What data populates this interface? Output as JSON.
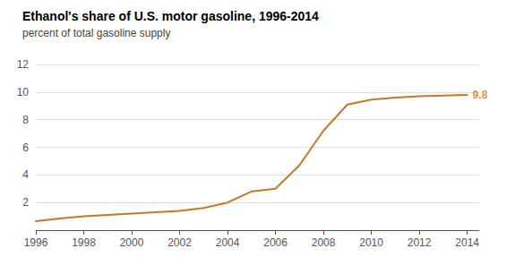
{
  "chart_data": {
    "type": "line",
    "title": "Ethanol's share of U.S. motor gasoline, 1996-2014",
    "subtitle": "percent of total gasoline supply",
    "x": [
      1996,
      1997,
      1998,
      1999,
      2000,
      2001,
      2002,
      2003,
      2004,
      2005,
      2006,
      2007,
      2008,
      2009,
      2010,
      2011,
      2012,
      2013,
      2014
    ],
    "values": [
      0.65,
      0.85,
      1.0,
      1.1,
      1.2,
      1.3,
      1.4,
      1.6,
      2.0,
      2.8,
      3.0,
      4.7,
      7.2,
      9.1,
      9.45,
      9.6,
      9.7,
      9.75,
      9.8
    ],
    "color": "#C87820",
    "xlim": [
      1996,
      2014.5
    ],
    "xticks": [
      1996,
      1998,
      2000,
      2002,
      2004,
      2006,
      2008,
      2010,
      2012,
      2014
    ],
    "ylim": [
      0,
      12
    ],
    "yticks": [
      {
        "value": 0,
        "label": null
      },
      2,
      4,
      6,
      8,
      10,
      12
    ],
    "grid": true,
    "annotations": [
      {
        "text": "9.8",
        "x": 2014,
        "y": 9.8,
        "color": "#C87820"
      }
    ]
  }
}
